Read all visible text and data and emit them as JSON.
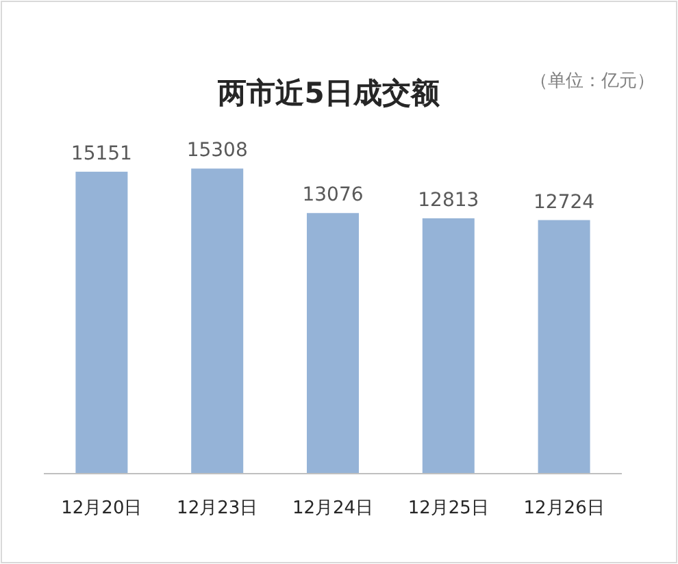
{
  "chart_data": {
    "type": "bar",
    "title": "两市近5日成交额",
    "subtitle": "（单位：亿元）",
    "categories": [
      "12月20日",
      "12月23日",
      "12月24日",
      "12月25日",
      "12月26日"
    ],
    "values": [
      15151,
      15308,
      13076,
      12813,
      12724
    ],
    "color": "#95b3d7",
    "data_labels": true
  }
}
